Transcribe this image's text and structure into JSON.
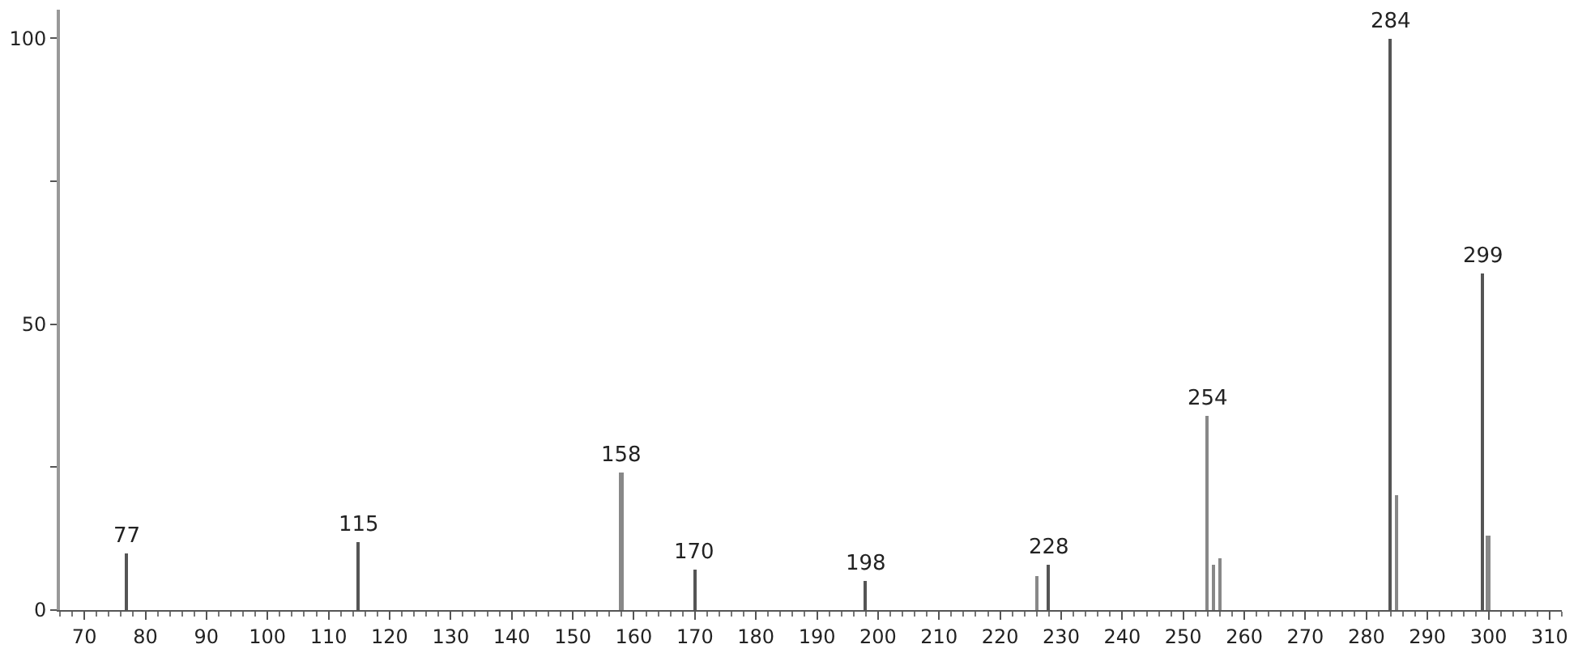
{
  "chart_data": {
    "type": "bar",
    "x": [
      77,
      115,
      158,
      170,
      198,
      226,
      228,
      254,
      255,
      256,
      284,
      285,
      299,
      300
    ],
    "values": [
      10,
      12,
      24,
      7,
      5,
      6,
      8,
      34,
      8,
      9,
      100,
      20,
      59,
      13
    ],
    "colors": [
      "#555555",
      "#555555",
      "#888888",
      "#555555",
      "#555555",
      "#888888",
      "#555555",
      "#888888",
      "#888888",
      "#888888",
      "#555555",
      "#888888",
      "#555555",
      "#888888"
    ],
    "annotations": [
      {
        "text": "77",
        "x": 77,
        "y": 10
      },
      {
        "text": "115",
        "x": 115,
        "y": 12
      },
      {
        "text": "158",
        "x": 158,
        "y": 24
      },
      {
        "text": "170",
        "x": 170,
        "y": 7
      },
      {
        "text": "198",
        "x": 198,
        "y": 5
      },
      {
        "text": "228",
        "x": 228,
        "y": 8
      },
      {
        "text": "254",
        "x": 254,
        "y": 34
      },
      {
        "text": "284",
        "x": 284,
        "y": 100
      },
      {
        "text": "299",
        "x": 299,
        "y": 59
      }
    ],
    "xlim": [
      66,
      312
    ],
    "xticks": [
      70,
      80,
      90,
      100,
      110,
      120,
      130,
      140,
      150,
      160,
      170,
      180,
      190,
      200,
      210,
      220,
      230,
      240,
      250,
      260,
      270,
      280,
      290,
      300,
      310
    ],
    "ylim": [
      0,
      105
    ],
    "yticks": [
      0,
      {
        "value": 25,
        "label": null
      },
      50,
      {
        "value": 75,
        "label": null
      },
      100
    ]
  }
}
